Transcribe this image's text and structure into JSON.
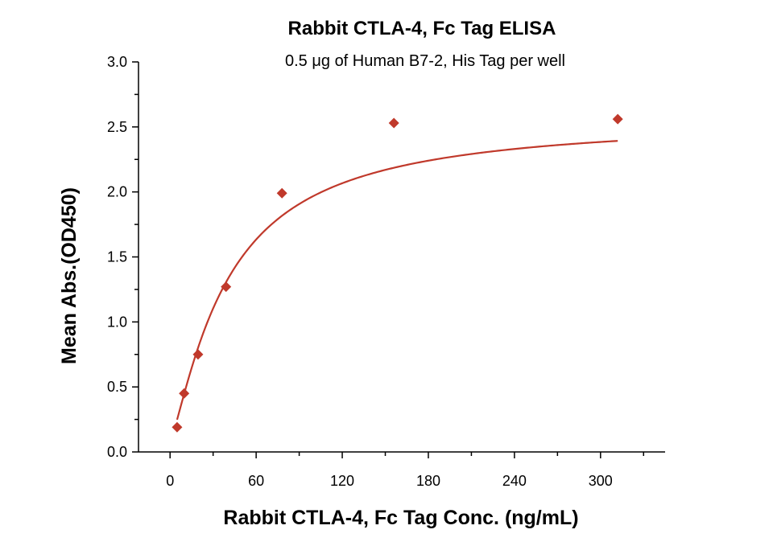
{
  "chart_data": {
    "type": "scatter",
    "title": "Rabbit CTLA-4, Fc Tag ELISA",
    "subtitle": "0.5 μg of Human B7-2, His Tag per well",
    "xlabel": "Rabbit CTLA-4, Fc Tag Conc. (ng/mL)",
    "ylabel": "Mean Abs.(OD450)",
    "xlim": [
      -22,
      345
    ],
    "ylim": [
      0,
      3.0
    ],
    "x_ticks": [
      "0",
      "60",
      "120",
      "180",
      "240",
      "300"
    ],
    "y_ticks": [
      "0.0",
      "0.5",
      "1.0",
      "1.5",
      "2.0",
      "2.5",
      "3.0"
    ],
    "series": [
      {
        "color": "#c0392b",
        "marker": "diamond",
        "x": [
          4.9,
          9.8,
          19.5,
          39,
          78,
          156,
          312
        ],
        "y": [
          0.19,
          0.45,
          0.75,
          1.27,
          1.99,
          2.53,
          2.56
        ]
      }
    ],
    "fit": {
      "type": "4PL",
      "color": "#c0392b",
      "bottom": 0.08,
      "top": 2.57,
      "ec50": 40,
      "hill": 1.25
    },
    "grid": false,
    "legend": "none"
  }
}
